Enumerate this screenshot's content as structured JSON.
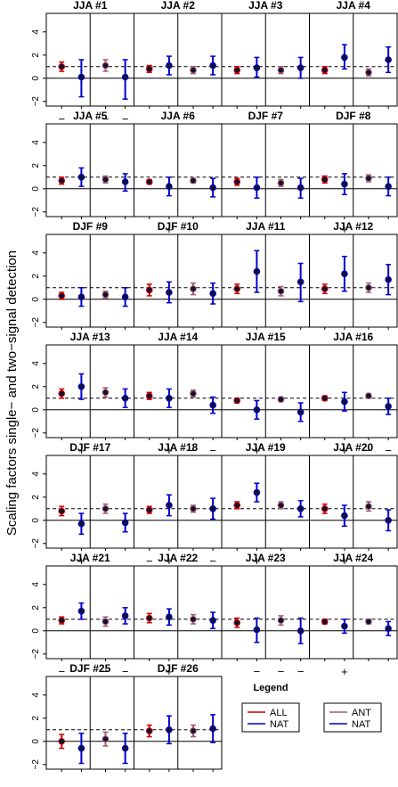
{
  "chart_data": {
    "type": "scatter",
    "ylabel": "Scaling factors single− and two−signal detection",
    "ylim": [
      -2.4,
      5.6
    ],
    "yticks": [
      -2,
      0,
      2,
      4
    ],
    "reference_lines": {
      "solid": 0,
      "dashed": 1
    },
    "series_colors": {
      "ALL": "#cc0000",
      "NAT": "#0000cc",
      "ANT": "#a05a6e",
      "NAT2": "#0000cc"
    },
    "point_color": "#111133",
    "legend": {
      "title": "Legend",
      "single": [
        {
          "label": "ALL",
          "color": "#cc0000"
        },
        {
          "label": "NAT",
          "color": "#0000cc"
        }
      ],
      "two": [
        {
          "label": "ANT",
          "color": "#a05a6e"
        },
        {
          "label": "NAT",
          "color": "#0000cc"
        }
      ]
    },
    "panels": [
      {
        "title": "JJA #1",
        "points": [
          [
            1.0,
            0.6,
            1.4
          ],
          [
            0.1,
            -1.6,
            1.6
          ],
          [
            1.1,
            0.6,
            1.6
          ],
          [
            0.1,
            -1.8,
            1.6
          ]
        ],
        "marks": [
          "−",
          "",
          "−",
          "−"
        ]
      },
      {
        "title": "JJA #2",
        "points": [
          [
            0.8,
            0.5,
            1.1
          ],
          [
            1.1,
            0.3,
            1.9
          ],
          [
            0.7,
            0.4,
            1.0
          ],
          [
            1.1,
            0.3,
            1.9
          ]
        ],
        "marks": [
          "",
          "",
          "",
          ""
        ]
      },
      {
        "title": "JJA #3",
        "points": [
          [
            0.7,
            0.4,
            1.0
          ],
          [
            0.9,
            0.1,
            1.8
          ],
          [
            0.7,
            0.4,
            1.0
          ],
          [
            0.9,
            0.0,
            1.8
          ]
        ],
        "marks": [
          "",
          "",
          "",
          ""
        ]
      },
      {
        "title": "JJA #4",
        "points": [
          [
            0.7,
            0.4,
            1.0
          ],
          [
            1.8,
            0.8,
            2.9
          ],
          [
            0.5,
            0.2,
            0.8
          ],
          [
            1.6,
            0.5,
            2.7
          ]
        ],
        "marks": [
          "",
          "",
          "",
          ""
        ]
      },
      {
        "title": "JJA #5",
        "points": [
          [
            0.7,
            0.4,
            1.0
          ],
          [
            1.0,
            0.2,
            1.8
          ],
          [
            0.8,
            0.5,
            1.1
          ],
          [
            0.6,
            -0.2,
            1.3
          ]
        ],
        "marks": [
          "",
          "",
          "",
          ""
        ]
      },
      {
        "title": "JJA #6",
        "points": [
          [
            0.6,
            0.4,
            0.8
          ],
          [
            0.2,
            -0.6,
            1.0
          ],
          [
            0.7,
            0.5,
            0.9
          ],
          [
            0.1,
            -0.7,
            0.9
          ]
        ],
        "marks": [
          "",
          "+",
          "",
          ""
        ]
      },
      {
        "title": "DJF #7",
        "points": [
          [
            0.6,
            0.3,
            0.9
          ],
          [
            0.1,
            -0.8,
            1.0
          ],
          [
            0.5,
            0.2,
            0.8
          ],
          [
            0.1,
            -0.8,
            0.9
          ]
        ],
        "marks": [
          "",
          "",
          "",
          ""
        ]
      },
      {
        "title": "DJF #8",
        "points": [
          [
            0.8,
            0.5,
            1.1
          ],
          [
            0.4,
            -0.5,
            1.3
          ],
          [
            0.9,
            0.6,
            1.2
          ],
          [
            0.2,
            -0.6,
            1.0
          ]
        ],
        "marks": [
          "",
          "+",
          "",
          ""
        ]
      },
      {
        "title": "DJF #9",
        "points": [
          [
            0.3,
            0.0,
            0.6
          ],
          [
            0.2,
            -0.6,
            1.0
          ],
          [
            0.4,
            0.1,
            0.7
          ],
          [
            0.2,
            -0.6,
            1.0
          ]
        ],
        "marks": [
          "",
          "",
          "",
          ""
        ]
      },
      {
        "title": "DJF #10",
        "points": [
          [
            0.8,
            0.3,
            1.3
          ],
          [
            0.6,
            -0.3,
            1.5
          ],
          [
            0.9,
            0.4,
            1.4
          ],
          [
            0.5,
            -0.4,
            1.4
          ]
        ],
        "marks": [
          "",
          "",
          "",
          ""
        ]
      },
      {
        "title": "JJA #11",
        "points": [
          [
            0.9,
            0.5,
            1.3
          ],
          [
            2.4,
            0.6,
            4.2
          ],
          [
            0.7,
            0.3,
            1.1
          ],
          [
            1.5,
            -0.2,
            3.1
          ]
        ],
        "marks": [
          "",
          "",
          "",
          ""
        ]
      },
      {
        "title": "JJA #12",
        "points": [
          [
            0.9,
            0.5,
            1.3
          ],
          [
            2.2,
            0.7,
            3.7
          ],
          [
            1.0,
            0.6,
            1.4
          ],
          [
            1.7,
            0.4,
            3.0
          ]
        ],
        "marks": [
          "",
          "",
          "",
          ""
        ]
      },
      {
        "title": "JJA #13",
        "points": [
          [
            1.4,
            1.0,
            1.8
          ],
          [
            2.0,
            0.9,
            3.1
          ],
          [
            1.5,
            1.1,
            1.9
          ],
          [
            1.0,
            0.2,
            1.8
          ]
        ],
        "marks": [
          "",
          "+",
          "",
          ""
        ]
      },
      {
        "title": "JJA #14",
        "points": [
          [
            1.2,
            0.9,
            1.5
          ],
          [
            1.0,
            0.2,
            1.8
          ],
          [
            1.4,
            1.1,
            1.7
          ],
          [
            0.4,
            -0.3,
            1.1
          ]
        ],
        "marks": [
          "",
          "+",
          "−",
          "−"
        ]
      },
      {
        "title": "JJA #15",
        "points": [
          [
            0.8,
            0.6,
            1.0
          ],
          [
            0.0,
            -0.8,
            0.8
          ],
          [
            0.9,
            0.7,
            1.1
          ],
          [
            -0.2,
            -1.0,
            0.6
          ]
        ],
        "marks": [
          "",
          "+",
          "",
          ""
        ]
      },
      {
        "title": "JJA #16",
        "points": [
          [
            1.0,
            0.8,
            1.2
          ],
          [
            0.7,
            -0.1,
            1.5
          ],
          [
            1.2,
            1.0,
            1.4
          ],
          [
            0.3,
            -0.4,
            1.0
          ]
        ],
        "marks": [
          "",
          "+",
          "−",
          "−"
        ]
      },
      {
        "title": "DJF #17",
        "points": [
          [
            0.8,
            0.4,
            1.2
          ],
          [
            -0.3,
            -1.2,
            0.6
          ],
          [
            1.0,
            0.6,
            1.4
          ],
          [
            -0.2,
            -1.0,
            0.6
          ]
        ],
        "marks": [
          "",
          "+",
          "",
          ""
        ]
      },
      {
        "title": "JJA #18",
        "points": [
          [
            0.9,
            0.6,
            1.2
          ],
          [
            1.3,
            0.4,
            2.2
          ],
          [
            1.0,
            0.7,
            1.3
          ],
          [
            1.0,
            0.1,
            1.9
          ]
        ],
        "marks": [
          "−",
          "+",
          "−",
          "−"
        ]
      },
      {
        "title": "JJA #19",
        "points": [
          [
            1.3,
            1.0,
            1.6
          ],
          [
            2.4,
            1.6,
            3.2
          ],
          [
            1.3,
            1.0,
            1.6
          ],
          [
            1.0,
            0.3,
            1.7
          ]
        ],
        "marks": [
          "",
          "+",
          "",
          ""
        ]
      },
      {
        "title": "JJA #20",
        "points": [
          [
            1.0,
            0.6,
            1.4
          ],
          [
            0.4,
            -0.5,
            1.3
          ],
          [
            1.2,
            0.8,
            1.6
          ],
          [
            0.0,
            -0.9,
            0.9
          ]
        ],
        "marks": [
          "",
          "+",
          "",
          ""
        ]
      },
      {
        "title": "JJA #21",
        "points": [
          [
            0.9,
            0.6,
            1.2
          ],
          [
            1.7,
            1.0,
            2.4
          ],
          [
            0.8,
            0.4,
            1.2
          ],
          [
            1.3,
            0.6,
            2.0
          ]
        ],
        "marks": [
          "−",
          "",
          "−",
          "−"
        ]
      },
      {
        "title": "JJA #22",
        "points": [
          [
            1.1,
            0.7,
            1.5
          ],
          [
            1.2,
            0.5,
            1.9
          ],
          [
            1.0,
            0.6,
            1.4
          ],
          [
            0.9,
            0.2,
            1.6
          ]
        ],
        "marks": [
          "",
          "+",
          "",
          ""
        ]
      },
      {
        "title": "JJA #23",
        "points": [
          [
            0.7,
            0.3,
            1.1
          ],
          [
            0.1,
            -1.0,
            1.1
          ],
          [
            0.9,
            0.5,
            1.3
          ],
          [
            0.0,
            -1.1,
            1.1
          ]
        ],
        "marks": [
          "",
          "−",
          "−",
          "−"
        ]
      },
      {
        "title": "JJA #24",
        "points": [
          [
            0.8,
            0.6,
            1.0
          ],
          [
            0.4,
            -0.2,
            1.0
          ],
          [
            0.8,
            0.6,
            1.0
          ],
          [
            0.2,
            -0.4,
            0.8
          ]
        ],
        "marks": [
          "",
          "+",
          "",
          ""
        ]
      },
      {
        "title": "DJF #25",
        "points": [
          [
            0.0,
            -0.6,
            0.6
          ],
          [
            -0.6,
            -1.9,
            0.7
          ],
          [
            0.2,
            -0.4,
            0.8
          ],
          [
            -0.6,
            -1.9,
            0.7
          ]
        ],
        "marks": [
          "",
          "",
          "",
          ""
        ]
      },
      {
        "title": "DJF #26",
        "points": [
          [
            0.9,
            0.4,
            1.4
          ],
          [
            1.0,
            -0.2,
            2.2
          ],
          [
            0.9,
            0.4,
            1.4
          ],
          [
            1.1,
            -0.1,
            2.3
          ]
        ],
        "marks": [
          "",
          "",
          "",
          ""
        ]
      }
    ]
  }
}
